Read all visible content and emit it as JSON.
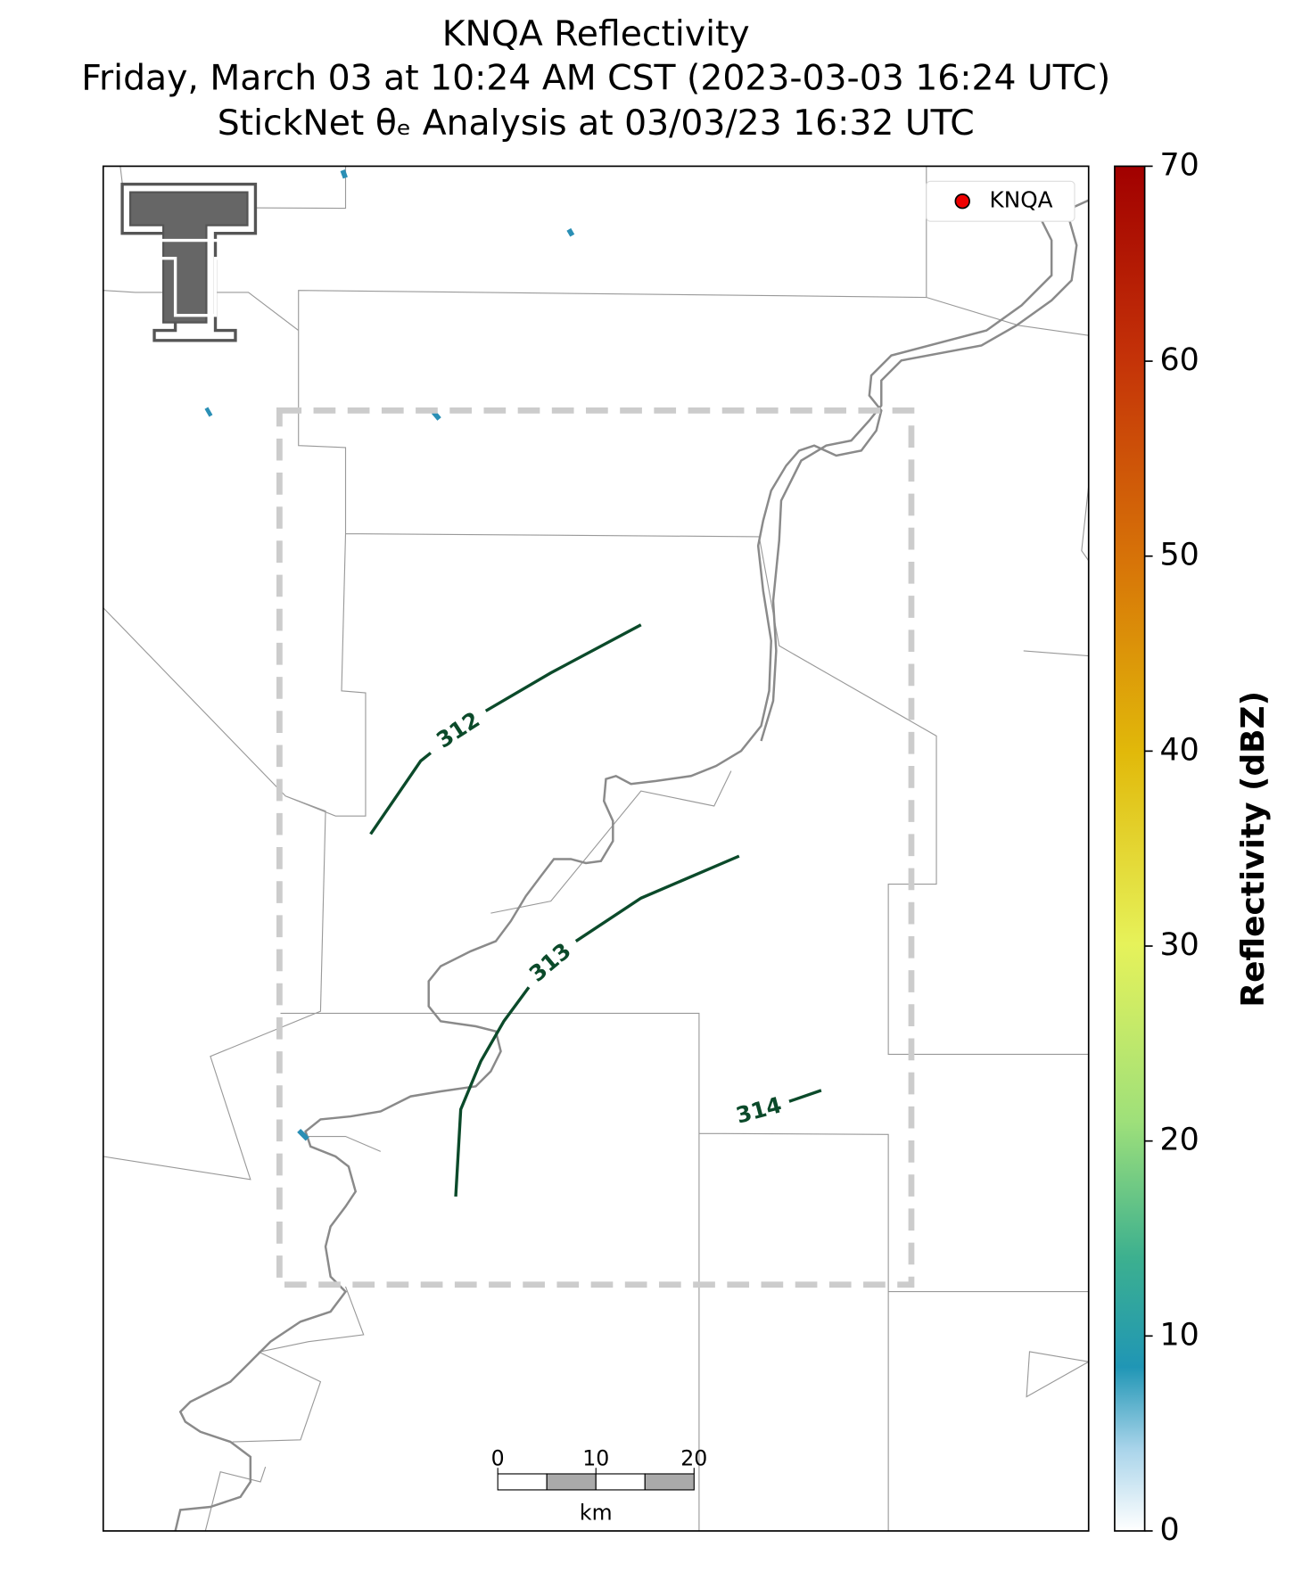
{
  "title": [
    "KNQA Reflectivity",
    "Friday, March 03 at 10:24 AM CST (2023-03-03 16:24 UTC)",
    "StickNet θₑ Analysis at 03/03/23 16:32 UTC"
  ],
  "legend": {
    "label": "KNQA"
  },
  "contours": [
    {
      "label": 312
    },
    {
      "label": 313
    },
    {
      "label": 314
    }
  ],
  "colorbar": {
    "label": "Reflectivity (dBZ)",
    "lim": [
      0,
      70
    ],
    "ticks": [
      0,
      10,
      20,
      30,
      40,
      50,
      60,
      70
    ]
  },
  "scale_bar": {
    "ticks": [
      0,
      10,
      20
    ],
    "unit": "km"
  }
}
